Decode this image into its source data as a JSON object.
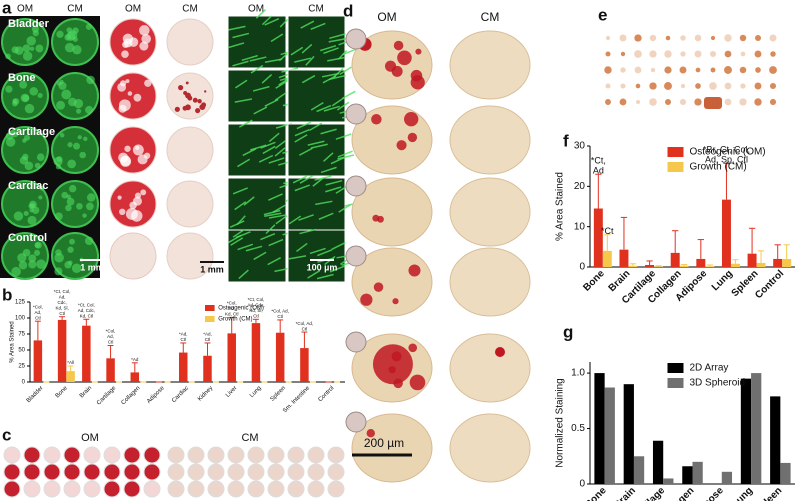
{
  "figure": {
    "panels": [
      "a",
      "b",
      "c",
      "d",
      "e",
      "f",
      "g"
    ],
    "panel_a": {
      "columns": [
        "OM",
        "CM",
        "OM",
        "CM",
        "OM",
        "CM"
      ],
      "rows": [
        "Bladder",
        "Bone",
        "Cartilage",
        "Cardiac",
        "Control"
      ],
      "scale_bars": [
        "1 mm",
        "1 mm",
        "100 µm"
      ]
    },
    "panel_c": {
      "columns": [
        "OM",
        "CM"
      ]
    },
    "panel_d": {
      "columns": [
        "OM",
        "CM"
      ],
      "scale_bar": "200 µm"
    }
  },
  "chart_data": [
    {
      "type": "bar",
      "ylabel": "% Area Stained",
      "categories": [
        "Bladder",
        "Bone",
        "Brain",
        "Cartilage",
        "Collagen",
        "Adipose",
        "Cardiac",
        "Kidney",
        "Liver",
        "Lung",
        "Spleen",
        "Sm. Intestine",
        "Control"
      ],
      "series": [
        {
          "name": "Osteogenic (OM)",
          "color": "#e0301e",
          "values": [
            65,
            97,
            88,
            37,
            15,
            0,
            46,
            41,
            76,
            92,
            77,
            53,
            0
          ],
          "errors": [
            30,
            5,
            10,
            20,
            15,
            0,
            15,
            20,
            25,
            6,
            20,
            25,
            0
          ],
          "annotations": [
            [
              "*Col,",
              "Ad,",
              "Ctl"
            ],
            [
              "*Ct, Col,",
              "Ad,",
              "Cdc,",
              "Kd, Sl,",
              "Ctl"
            ],
            [
              "*Ct, Col,",
              "Ad, Cdc,",
              "Kd, Ctl"
            ],
            [
              "*Col,",
              "Ad,",
              "Ctl"
            ],
            [
              "*Ad"
            ],
            null,
            [
              "*Ad,",
              "Ctl"
            ],
            [
              "*Ad,",
              "Ctl"
            ],
            [
              "*Col,",
              "Ad,",
              "Kd, Ctl"
            ],
            [
              "*Ct, Col,",
              "Ad, Cdc,",
              "Kd, Sl,",
              "Ctl"
            ],
            [
              "*Col, Ad,",
              "Ctl"
            ],
            [
              "*Col, Ad,",
              "Ctl"
            ],
            null
          ]
        },
        {
          "name": "Growth (CM)",
          "color": "#f5c84c",
          "values": [
            0,
            17,
            0,
            0,
            0,
            0,
            0,
            0,
            0,
            0,
            0,
            0,
            0
          ],
          "errors": [
            0,
            8,
            0,
            0,
            0,
            0,
            0,
            0,
            0,
            0,
            0,
            0,
            0
          ],
          "annotations": [
            null,
            [
              "*All"
            ],
            null,
            null,
            null,
            null,
            null,
            null,
            null,
            null,
            null,
            null,
            null
          ]
        }
      ],
      "ylim": [
        0,
        125
      ],
      "yticks": [
        0,
        25,
        50,
        75,
        100,
        125
      ],
      "legend": "upper right"
    },
    {
      "type": "bar",
      "ylabel": "% Area Stained",
      "categories": [
        "Bone",
        "Brain",
        "Cartilage",
        "Collagen",
        "Adipose",
        "Lung",
        "Spleen",
        "Control"
      ],
      "series": [
        {
          "name": "Osteogenic (OM)",
          "color": "#e0301e",
          "values": [
            14.5,
            4.3,
            0.5,
            3.5,
            2,
            16.7,
            3.3,
            2
          ],
          "errors": [
            8.5,
            8,
            1,
            5.5,
            4.8,
            9,
            6.3,
            3.5
          ],
          "annotations": [
            [
              "*Ct,",
              "Ad"
            ],
            null,
            null,
            null,
            null,
            [
              "*Br, Ct, Col,",
              "Ad, Sp, Ctl"
            ],
            null,
            null
          ]
        },
        {
          "name": "Growth (CM)",
          "color": "#f5c84c",
          "values": [
            4,
            0.3,
            0.1,
            0.3,
            0.2,
            0.8,
            1,
            2
          ],
          "errors": [
            4,
            0.5,
            0.2,
            0.3,
            0.3,
            1,
            3,
            3.5
          ],
          "annotations": [
            [
              "*Ct"
            ],
            null,
            null,
            null,
            null,
            null,
            null,
            null
          ]
        }
      ],
      "ylim": [
        0,
        30
      ],
      "yticks": [
        0,
        10,
        20,
        30
      ],
      "legend": "upper center"
    },
    {
      "type": "bar",
      "ylabel": "Normalized Staining",
      "categories": [
        "Bone",
        "Brain",
        "Cartilage",
        "Collagen",
        "Adipose",
        "Lung",
        "Spleen"
      ],
      "series": [
        {
          "name": "2D Array",
          "color": "#000000",
          "values": [
            1.0,
            0.9,
            0.39,
            0.16,
            0,
            0.95,
            0.79
          ]
        },
        {
          "name": "3D Spheroid",
          "color": "#707070",
          "values": [
            0.87,
            0.25,
            0.05,
            0.2,
            0.11,
            1.0,
            0.19
          ]
        }
      ],
      "ylim": [
        0,
        1.1
      ],
      "yticks": [
        0,
        0.5,
        {
          "value": 1,
          "label": "1.0"
        }
      ],
      "legend": "upper center"
    }
  ]
}
